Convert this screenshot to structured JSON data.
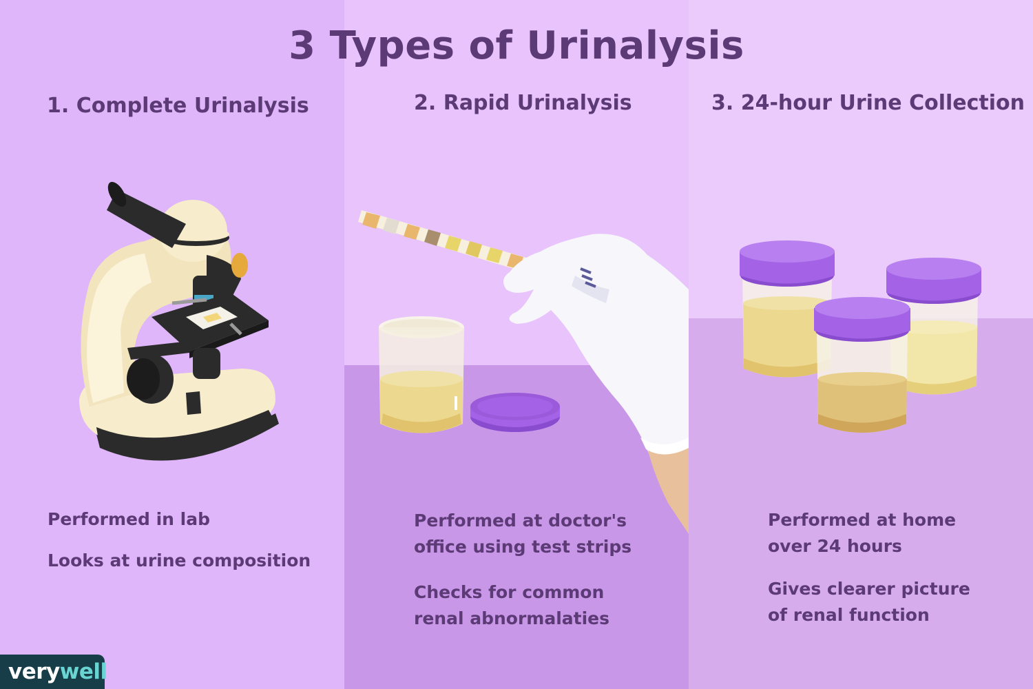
{
  "title": "3 Types of Urinalysis",
  "panels": [
    {
      "heading": "1. Complete Urinalysis",
      "lines": [
        "Performed in lab",
        "Looks at urine composition"
      ]
    },
    {
      "heading": "2. Rapid Urinalysis",
      "lines": [
        "Performed at doctor's office using test strips",
        "Checks for common renal abnormalaties"
      ]
    },
    {
      "heading": "3. 24-hour Urine Collection",
      "lines": [
        "Performed at home over 24 hours",
        "Gives clearer picture of renal function"
      ]
    }
  ],
  "logo": {
    "part1": "very",
    "part2": "well"
  },
  "colors": {
    "panel1_bg": "#e0b6fb",
    "panel2_bg": "#e8c3fc",
    "panel3_bg": "#ebcafc",
    "text": "#5c3a75",
    "lid": "#a463e6",
    "urine": "#e9d48a",
    "microscope_body": "#f7eccb",
    "logo_bg": "#173d48",
    "logo_accent": "#69d4d2"
  },
  "icons": [
    "microscope-icon",
    "test-strip-icon",
    "glove-hand-icon",
    "specimen-cup-icon",
    "cup-lid-icon"
  ]
}
